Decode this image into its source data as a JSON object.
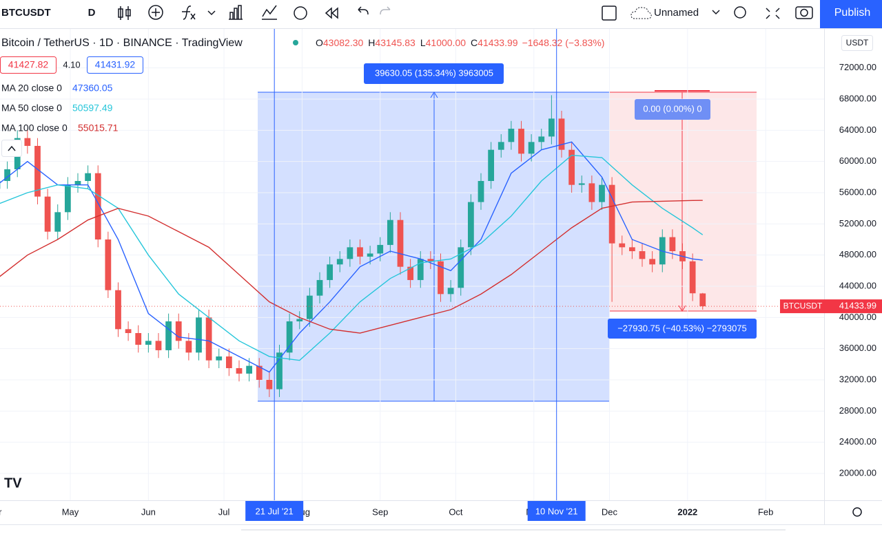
{
  "toolbar": {
    "symbol": "BTCUSDT",
    "interval": "D",
    "layout_name": "Unnamed",
    "publish": "Publish"
  },
  "legend": {
    "title": "Bitcoin / TetherUS · 1D · BINANCE · TradingView",
    "ohlc": [
      {
        "label": "O",
        "value": "43082.30"
      },
      {
        "label": "H",
        "value": "43145.83"
      },
      {
        "label": "L",
        "value": "41000.00"
      },
      {
        "label": "C",
        "value": "41433.99"
      }
    ],
    "change": "−1648.32 (−3.83%)",
    "bid": "41427.82",
    "spread": "4.10",
    "ask": "41431.92"
  },
  "chart_data": {
    "type": "candlestick",
    "currency": "USDT",
    "up_color": "#26a69a",
    "down_color": "#ef5350",
    "x": [
      1,
      5,
      9,
      13,
      17,
      21,
      25,
      29,
      33,
      37,
      41,
      45,
      49,
      53,
      57,
      61,
      65,
      69,
      73,
      77,
      81,
      85,
      89,
      93,
      97,
      101,
      105,
      109,
      113,
      117,
      121,
      125,
      129,
      133,
      137,
      141,
      145,
      149,
      153,
      157,
      161,
      165,
      169,
      173,
      177,
      181,
      185,
      189,
      193,
      197,
      201,
      205,
      209,
      213,
      217,
      221,
      225,
      229,
      233,
      237,
      241,
      245,
      249,
      253,
      257,
      261,
      265,
      269,
      273,
      277,
      281
    ],
    "series": [
      {
        "name": "BTCUSDT",
        "open": [
          56500,
          57500,
          59000,
          63000,
          62000,
          55500,
          51000,
          53500,
          57000,
          57500,
          58500,
          50000,
          43500,
          38500,
          38000,
          36500,
          37000,
          35800,
          39500,
          37000,
          35500,
          40000,
          34500,
          35000,
          33500,
          32800,
          33800,
          32000,
          30800,
          35500,
          39500,
          39800,
          42800,
          44800,
          46800,
          47500,
          49000,
          47800,
          48200,
          49300,
          52500,
          46500,
          44800,
          47500,
          47200,
          43000,
          43800,
          49000,
          54800,
          57500,
          61500,
          62500,
          64200,
          61000,
          62500,
          63200,
          65500,
          61500,
          57000,
          57200,
          54800,
          57000,
          49500,
          49000,
          48500,
          47500,
          46800,
          50300,
          48500,
          47200,
          43082.3
        ],
        "high": [
          58500,
          60000,
          64000,
          64000,
          63000,
          56500,
          54500,
          58000,
          58500,
          59500,
          59500,
          51000,
          44500,
          39500,
          39000,
          38000,
          38000,
          40500,
          40500,
          38000,
          41000,
          41000,
          36000,
          36000,
          34500,
          34800,
          34800,
          33000,
          36500,
          40500,
          40800,
          43800,
          45800,
          47800,
          48500,
          50000,
          50000,
          49200,
          50300,
          53500,
          53500,
          47500,
          48500,
          48500,
          48200,
          44800,
          50000,
          55800,
          58500,
          62500,
          63500,
          65200,
          65200,
          63500,
          64200,
          68500,
          66500,
          62500,
          58200,
          58200,
          58000,
          58000,
          50500,
          50000,
          49500,
          48500,
          51300,
          51300,
          49500,
          48200,
          43145.83
        ],
        "low": [
          55500,
          56500,
          58000,
          61000,
          54500,
          50000,
          50000,
          52500,
          56000,
          56500,
          49000,
          42500,
          37500,
          37000,
          35500,
          35500,
          34800,
          34800,
          36000,
          34500,
          34500,
          33500,
          33500,
          32500,
          31800,
          31800,
          31000,
          29800,
          29800,
          34500,
          38500,
          38800,
          41800,
          43800,
          45800,
          46500,
          46800,
          46800,
          47200,
          48300,
          45500,
          43800,
          43800,
          46200,
          42000,
          42000,
          42800,
          48000,
          53800,
          56500,
          60500,
          61500,
          60000,
          60000,
          61500,
          62200,
          60500,
          56000,
          56000,
          53800,
          53800,
          42000,
          48000,
          47500,
          46500,
          45800,
          45800,
          47500,
          46200,
          42100,
          41000
        ],
        "close": [
          57500,
          59000,
          63000,
          62000,
          55500,
          51000,
          53500,
          57000,
          57500,
          58500,
          50000,
          43500,
          38500,
          38000,
          36500,
          37000,
          35800,
          39500,
          37000,
          35500,
          40000,
          34500,
          35000,
          33500,
          32800,
          33800,
          32000,
          30800,
          35500,
          39500,
          39800,
          42800,
          44800,
          46800,
          47500,
          49000,
          47800,
          48200,
          49300,
          52500,
          46500,
          44800,
          47500,
          47200,
          43000,
          43800,
          49000,
          54800,
          57500,
          61500,
          62500,
          64200,
          61000,
          62500,
          63200,
          65500,
          61500,
          57000,
          57200,
          54800,
          57000,
          49500,
          49000,
          48500,
          47500,
          46800,
          50300,
          48500,
          47200,
          43100,
          41433.99
        ]
      },
      {
        "name": "MA 20 close 0",
        "color": "#2962ff",
        "x": [
          1,
          13,
          25,
          37,
          49,
          61,
          73,
          85,
          97,
          109,
          121,
          133,
          145,
          157,
          169,
          181,
          193,
          205,
          217,
          229,
          241,
          253,
          265,
          277,
          281
        ],
        "values": [
          57000,
          60000,
          57000,
          57000,
          50000,
          40500,
          37500,
          37000,
          35000,
          33000,
          38000,
          42000,
          46500,
          48500,
          47500,
          46000,
          50000,
          58500,
          61500,
          62500,
          58000,
          50000,
          48500,
          47500,
          47360.05
        ]
      },
      {
        "name": "MA 50 close 0",
        "color": "#26c6da",
        "x": [
          1,
          13,
          25,
          37,
          49,
          61,
          73,
          85,
          97,
          109,
          121,
          133,
          145,
          157,
          169,
          181,
          193,
          205,
          217,
          229,
          241,
          253,
          265,
          277,
          281
        ],
        "values": [
          54500,
          56000,
          57000,
          56500,
          54000,
          48000,
          43000,
          40000,
          37000,
          35000,
          34500,
          38000,
          42000,
          45000,
          47000,
          47500,
          49500,
          53000,
          57500,
          60800,
          60500,
          57000,
          54000,
          51500,
          50597.49
        ]
      },
      {
        "name": "MA 100 close 0",
        "color": "#d32f2f",
        "x": [
          1,
          13,
          25,
          37,
          49,
          61,
          73,
          85,
          97,
          109,
          121,
          133,
          145,
          157,
          169,
          181,
          193,
          205,
          217,
          229,
          241,
          253,
          265,
          277,
          281
        ],
        "values": [
          45000,
          48000,
          50000,
          52500,
          54000,
          53000,
          51000,
          49000,
          45500,
          42000,
          40000,
          38500,
          38000,
          39000,
          40000,
          41000,
          43000,
          45500,
          48500,
          51500,
          54000,
          54800,
          54900,
          55000,
          55015.71
        ]
      }
    ],
    "xlim": [
      2.1,
      329.2
    ],
    "ylim": [
      16560,
      77000
    ],
    "xticks": [
      {
        "value": 0,
        "label": "Apr"
      },
      {
        "value": 30,
        "label": "May"
      },
      {
        "value": 61,
        "label": "Jun"
      },
      {
        "value": 91,
        "label": "Jul"
      },
      {
        "value": 122,
        "label": "Aug"
      },
      {
        "value": 153,
        "label": "Sep"
      },
      {
        "value": 183,
        "label": "Oct"
      },
      {
        "value": 214,
        "label": "Nov"
      },
      {
        "value": 244,
        "label": "Dec"
      },
      {
        "value": 275,
        "label": "2022"
      },
      {
        "value": 306,
        "label": "Feb"
      }
    ],
    "yticks": [
      {
        "value": 20000,
        "label": "20000.00"
      },
      {
        "value": 24000,
        "label": "24000.00"
      },
      {
        "value": 28000,
        "label": "28000.00"
      },
      {
        "value": 32000,
        "label": "32000.00"
      },
      {
        "value": 36000,
        "label": "36000.00"
      },
      {
        "value": 40000,
        "label": "40000.00"
      },
      {
        "value": 44000,
        "label": "44000.00"
      },
      {
        "value": 48000,
        "label": "48000.00"
      },
      {
        "value": 52000,
        "label": "52000.00"
      },
      {
        "value": 56000,
        "label": "56000.00"
      },
      {
        "value": 60000,
        "label": "60000.00"
      },
      {
        "value": 64000,
        "label": "64000.00"
      },
      {
        "value": 68000,
        "label": "68000.00"
      },
      {
        "value": 72000,
        "label": "72000.00"
      }
    ],
    "crosshair_labels": [
      {
        "value": 111,
        "label": "21 Jul '21"
      },
      {
        "value": 223,
        "label": "10 Nov '21"
      }
    ],
    "measurements": [
      "39630.05 (135.34%) 3963005",
      "0.00 (0.00%) 0",
      "−27930.75 (−40.53%) −2793075"
    ]
  }
}
